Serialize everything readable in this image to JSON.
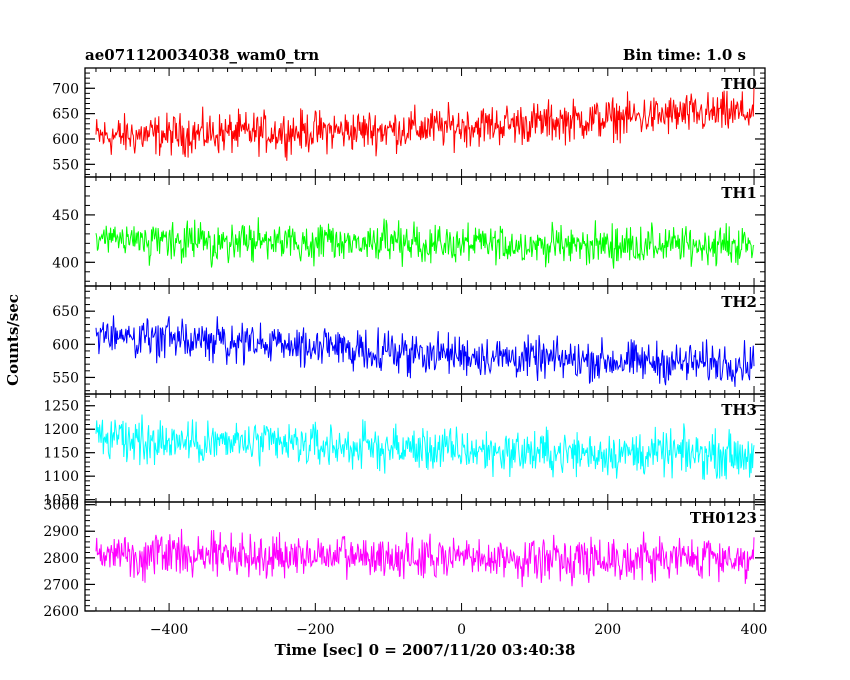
{
  "chart_data": {
    "type": "line",
    "title_left": "ae071120034038_wam0_trn",
    "title_right": "Bin time: 1.0 s",
    "xlabel": "Time [sec] 0 = 2007/11/20 03:40:38",
    "ylabel": "Counts/sec",
    "xlim": [
      -515,
      415
    ],
    "x_range": [
      -500,
      400
    ],
    "x_ticks": [
      -400,
      -200,
      0,
      200,
      400
    ],
    "x_tick_labels": [
      "−400",
      "−200",
      "0",
      "200",
      "400"
    ],
    "grid": false,
    "panels": [
      {
        "name": "TH0",
        "color": "#ff0000",
        "ylim": [
          525,
          740
        ],
        "y_ticks": [
          550,
          600,
          650,
          700
        ],
        "y_tick_labels": [
          "550",
          "600",
          "650",
          "700"
        ],
        "trend": [
          [
            -500,
            605
          ],
          [
            -300,
            612
          ],
          [
            -100,
            618
          ],
          [
            100,
            632
          ],
          [
            300,
            648
          ],
          [
            400,
            652
          ]
        ],
        "scatter_halfwidth": 60
      },
      {
        "name": "TH1",
        "color": "#00ff00",
        "ylim": [
          375,
          490
        ],
        "y_ticks": [
          400,
          450
        ],
        "y_tick_labels": [
          "400",
          "450"
        ],
        "trend": [
          [
            -500,
            422
          ],
          [
            -200,
            421
          ],
          [
            0,
            419
          ],
          [
            200,
            418
          ],
          [
            400,
            418
          ]
        ],
        "scatter_halfwidth": 30
      },
      {
        "name": "TH2",
        "color": "#0000ff",
        "ylim": [
          525,
          688
        ],
        "y_ticks": [
          550,
          600,
          650
        ],
        "y_tick_labels": [
          "550",
          "600",
          "650"
        ],
        "trend": [
          [
            -500,
            615
          ],
          [
            -300,
            602
          ],
          [
            -100,
            590
          ],
          [
            100,
            578
          ],
          [
            300,
            572
          ],
          [
            400,
            572
          ]
        ],
        "scatter_halfwidth": 45
      },
      {
        "name": "TH3",
        "color": "#00ffff",
        "ylim": [
          1045,
          1275
        ],
        "y_ticks": [
          1050,
          1100,
          1150,
          1200,
          1250
        ],
        "y_tick_labels": [
          "1050",
          "1100",
          "1150",
          "1200",
          "1250"
        ],
        "trend": [
          [
            -500,
            1180
          ],
          [
            -300,
            1170
          ],
          [
            -100,
            1160
          ],
          [
            100,
            1150
          ],
          [
            300,
            1148
          ],
          [
            400,
            1145
          ]
        ],
        "scatter_halfwidth": 70
      },
      {
        "name": "TH0123",
        "color": "#ff00ff",
        "ylim": [
          2600,
          3010
        ],
        "y_ticks": [
          2600,
          2700,
          2800,
          2900,
          3000
        ],
        "y_tick_labels": [
          "2600",
          "2700",
          "2800",
          "2900",
          "3000"
        ],
        "trend": [
          [
            -500,
            2815
          ],
          [
            -300,
            2810
          ],
          [
            -100,
            2800
          ],
          [
            100,
            2795
          ],
          [
            300,
            2800
          ],
          [
            400,
            2800
          ]
        ],
        "scatter_halfwidth": 120
      }
    ]
  }
}
